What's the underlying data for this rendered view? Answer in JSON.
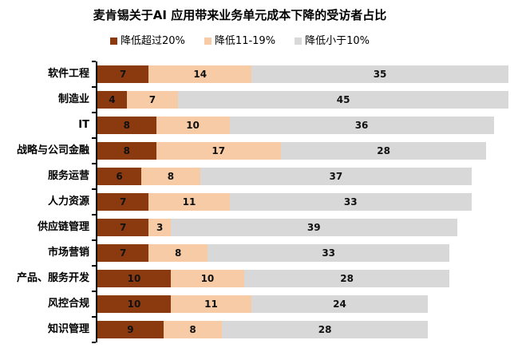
{
  "title": "麦肯锡关于AI 应用带来业务单元成本下降的受访者占比",
  "chart_data": {
    "type": "bar",
    "orientation": "horizontal",
    "stacked": true,
    "unit": "percent of respondents",
    "legend_position": "top-center",
    "grid": false,
    "xmax": 56,
    "categories": [
      "软件工程",
      "制造业",
      "IT",
      "战略与公司金融",
      "服务运营",
      "人力资源",
      "供应链管理",
      "市场营销",
      "产品、服务开发",
      "风控合规",
      "知识管理"
    ],
    "series": [
      {
        "name": "降低超过20%",
        "color": "#8B3A10",
        "values": [
          7,
          4,
          8,
          8,
          6,
          7,
          7,
          7,
          10,
          10,
          9
        ]
      },
      {
        "name": "降低11-19%",
        "color": "#F7CBA6",
        "values": [
          14,
          7,
          10,
          17,
          8,
          11,
          3,
          8,
          10,
          11,
          8
        ]
      },
      {
        "name": "降低小于10%",
        "color": "#D8D8D8",
        "values": [
          35,
          45,
          36,
          28,
          37,
          33,
          39,
          33,
          28,
          24,
          28
        ]
      }
    ],
    "colors": {
      "axis": "#000000",
      "background": "#ffffff",
      "value_label": "#111111"
    }
  }
}
